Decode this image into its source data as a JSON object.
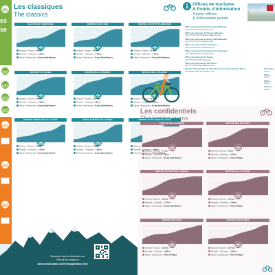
{
  "colors": {
    "teal": "#1c8c98",
    "teal_light": "#e7f2f4",
    "green": "#7cb342",
    "orange": "#ef7d22",
    "mauve": "#a07b87",
    "mauve_light": "#f7f1f3",
    "dark_teal": "#1d5b62",
    "red": "#c62828"
  },
  "left_strip": {
    "partial_word_1": "es",
    "partial_word_2": "se"
  },
  "classics": {
    "title": "Les classiques",
    "subtitle": "The classics"
  },
  "confidentials": {
    "title": "Les confidentiels",
    "subtitle": "The hidden gems"
  },
  "labels": {
    "distance": "Distance / Distance :",
    "elevation": "Dénivelé + / Elevation :",
    "start": "Départ / Starting point :"
  },
  "classic_cards": [
    {
      "name": "BALCON DE TARENTAISE",
      "distance": "44 km",
      "elevation": "1 060 m",
      "start": "Bourg-Saint-Maurice"
    },
    {
      "name": "MONTÉE D'ARC 2000",
      "distance": "26 km",
      "elevation": "1 420 m",
      "start": "Bourg-Saint-Maurice"
    },
    {
      "name": "MONTÉE DU PETIT ST-BERNARD",
      "distance": "31 km",
      "elevation": "1 440 m",
      "start": "Bourg-Saint-Maurice"
    },
    {
      "name": "VERSANT DU SOLEIL",
      "distance": "50 km",
      "elevation": "1 060 m",
      "start": "Bourg-Saint-Maurice"
    },
    {
      "name": "MONTÉE DE LA ROSIÈRE",
      "distance": "16.6 km",
      "elevation": "950 m",
      "start": "Bourg-Saint-Maurice"
    },
    {
      "name": "BOUCLE DE LA PLAGNE",
      "distance": "41 km",
      "elevation": "1 550 m",
      "start": "Bourg-Saint-Maurice"
    },
    {
      "name": "MONTÉE TIGNES PAR LE CLARET",
      "distance": "30 km",
      "elevation": "1 550 m",
      "start": "Bourg-Saint-Maurice"
    },
    {
      "name": "BOUCLE PEISEY-VALLANDRY",
      "distance": "50 km",
      "elevation": "1 360 m",
      "start": "Bourg-Saint-Maurice"
    },
    {
      "name": "MONTÉE DE PLAGNE VILLAGES",
      "distance": "21.1 km",
      "elevation": "1 440 m",
      "start": "Aime-la-Plagne"
    }
  ],
  "confidential_cards": [
    {
      "name": "MONTÉE DES CHAPIEUX",
      "distance": "7.1 km",
      "elevation": "780 m",
      "start": "Bourg-Saint-Maurice"
    },
    {
      "name": "MONTÉE DES BAUCHES",
      "distance": "10 km",
      "elevation": "1 070 m",
      "start": "Aime-la-Plagne"
    },
    {
      "name": "MONTÉE DU BOIS DE LA BERGE",
      "distance": "16.5 km",
      "elevation": "1 170 m",
      "start": "Bourg-Saint-Maurice"
    },
    {
      "name": "MONTÉE DE LA GURRAZ",
      "distance": "10.4 km",
      "elevation": "1 340 m",
      "start": "Aime-la-Plagne"
    },
    {
      "name": "MONTÉE DE CHAIS",
      "distance": "14.8 km",
      "elevation": "1 080 m",
      "start": "Aime-la-Plagne"
    },
    {
      "name": "MONTÉE D'ALPE BIOS",
      "distance": "20.4 km",
      "elevation": "1 240 m",
      "start": "Aime-la-Plagne"
    }
  ],
  "offices": {
    "title_fr": "Offices de tourisme",
    "title_fr_2": "& Points d'information",
    "title_en": "Tourist offices",
    "title_en_2": "& Information points",
    "list_a": [
      {
        "name": "Office de tourisme de Bourg-Saint-Maurice",
        "info": "+33 4 79 07 12 57  lesarcs.com"
      },
      {
        "name": "Office de tourisme de Peisey-Vallandry",
        "info": "+33 4 79 07 94 28  peisey-vallandry.com"
      },
      {
        "name": "Office de tourisme de Bourg-Saint-Maurice",
        "info": "+33 4 79 07 12 57  lesarcs.com"
      },
      {
        "name": "Office de tourisme de La Rosière",
        "info": "+33 4 79 06 80 51  larosiere.net"
      },
      {
        "name": "Office de tourisme de Sainte-Foy Tarentaise",
        "info": "+33 4 79 06 95 19  saintefoy.net"
      },
      {
        "name": "Office de tourisme de Tignes",
        "info": "+33 4 79 40 04 40  tignes.net"
      },
      {
        "name": "Office de tourisme de Val d'Isère",
        "info": "+33 4 79 06 06 60  valdisere.com"
      },
      {
        "name": "Bureau d'information de l'Hospice du Col du Petit-Saint-Bernard",
        "info": "+39 0165 78 51 57  larosiere.net"
      }
    ],
    "list_b": [
      {
        "name": "Grand Bo…",
        "info": "+33 4…"
      },
      {
        "name": "Office…",
        "info": "+33 4…"
      },
      {
        "name": "Office…",
        "info": "+33 4…"
      },
      {
        "name": "Aime-la…",
        "info": "+33 4…"
      }
    ]
  },
  "footer": {
    "line1": "Retrouvez tous les itinéraires sur :",
    "line2": "Find all the routes on :",
    "line3": "savoie-mont-blanc.com/velo/application-velo/"
  },
  "icons": [
    "bike-icon",
    "cyclist-illustration",
    "qr-code",
    "info-icon",
    "mountain-silhouette"
  ]
}
